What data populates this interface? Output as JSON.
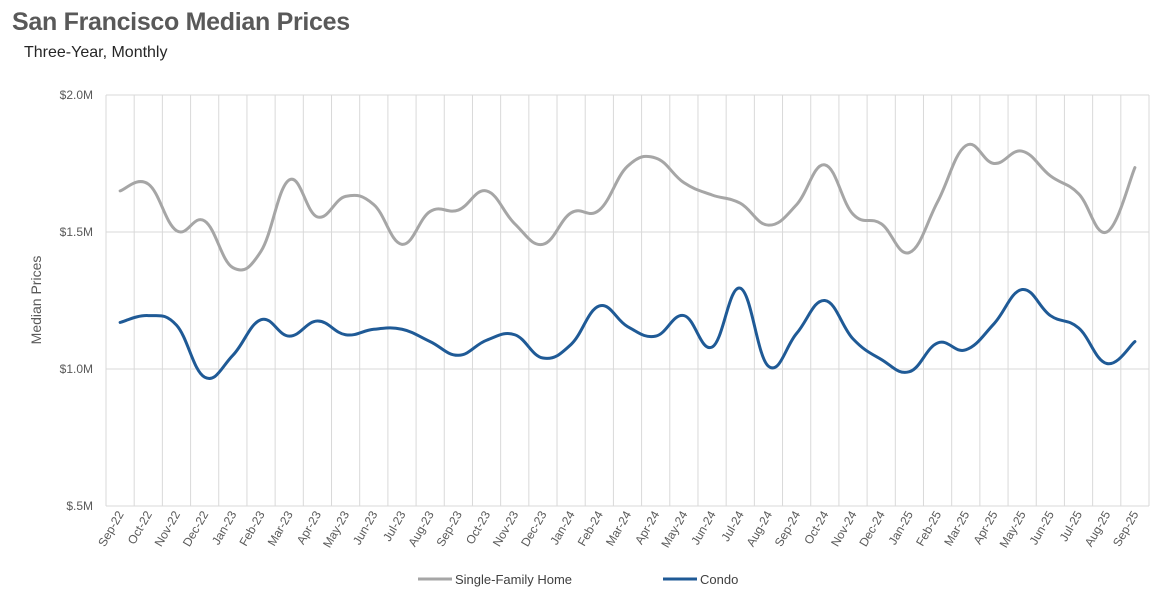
{
  "title": "San Francisco Median Prices",
  "subtitle": "Three-Year, Monthly",
  "chart_data": {
    "type": "line",
    "ylabel": "Median Prices",
    "ylim": [
      500000,
      2000000
    ],
    "y_ticks": [
      {
        "value": 2000000,
        "label": "$2.0M"
      },
      {
        "value": 1500000,
        "label": "$1.5M"
      },
      {
        "value": 1000000,
        "label": "$1.0M"
      },
      {
        "value": 500000,
        "label": "$.5M"
      }
    ],
    "categories": [
      "Sep-22",
      "Oct-22",
      "Nov-22",
      "Dec-22",
      "Jan-23",
      "Feb-23",
      "Mar-23",
      "Apr-23",
      "May-23",
      "Jun-23",
      "Jul-23",
      "Aug-23",
      "Sep-23",
      "Oct-23",
      "Nov-23",
      "Dec-23",
      "Jan-24",
      "Feb-24",
      "Mar-24",
      "Apr-24",
      "May-24",
      "Jun-24",
      "Jul-24",
      "Aug-24",
      "Sep-24",
      "Oct-24",
      "Nov-24",
      "Dec-24",
      "Jan-25",
      "Feb-25",
      "Mar-25",
      "Apr-25",
      "May-25",
      "Jun-25",
      "Jul-25",
      "Aug-25",
      "Sep-25"
    ],
    "grid": "vertical and horizontal",
    "legend_position": "bottom",
    "series": [
      {
        "name": "Single-Family Home",
        "color": "#a6a6a6",
        "values": [
          1650000,
          1675000,
          1505000,
          1540000,
          1370000,
          1430000,
          1690000,
          1555000,
          1630000,
          1600000,
          1455000,
          1575000,
          1580000,
          1650000,
          1530000,
          1455000,
          1570000,
          1580000,
          1740000,
          1770000,
          1680000,
          1635000,
          1605000,
          1525000,
          1600000,
          1745000,
          1565000,
          1530000,
          1425000,
          1610000,
          1815000,
          1750000,
          1795000,
          1705000,
          1640000,
          1500000,
          1735000
        ]
      },
      {
        "name": "Condo",
        "color": "#1f5a96",
        "values": [
          1170000,
          1195000,
          1160000,
          970000,
          1050000,
          1180000,
          1120000,
          1175000,
          1125000,
          1145000,
          1145000,
          1100000,
          1050000,
          1105000,
          1125000,
          1040000,
          1090000,
          1230000,
          1155000,
          1120000,
          1195000,
          1080000,
          1295000,
          1010000,
          1130000,
          1250000,
          1110000,
          1035000,
          990000,
          1095000,
          1070000,
          1165000,
          1290000,
          1195000,
          1150000,
          1020000,
          1100000
        ]
      }
    ]
  }
}
